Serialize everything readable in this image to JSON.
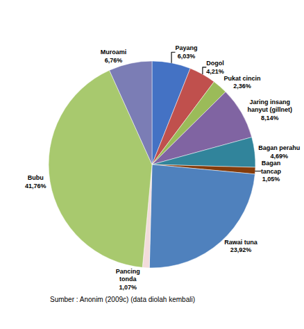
{
  "chart_data": {
    "type": "pie",
    "title": "",
    "categories": [
      "Payang",
      "Dogol",
      "Pukat cincin",
      "Jaring insang\nhanyut (gillnet)",
      "Bagan perahu",
      "Bagan\ntancap",
      "Rawai tuna",
      "Pancing\ntonda",
      "Bubu",
      "Muroami"
    ],
    "values": [
      6.03,
      4.21,
      2.36,
      8.14,
      4.69,
      1.05,
      23.92,
      1.07,
      41.76,
      6.76
    ],
    "value_labels": [
      "6,03%",
      "4,21%",
      "2,36%",
      "8,14%",
      "4,69%",
      "1,05%",
      "23,92%",
      "1,07%",
      "41,76%",
      "6,76%"
    ],
    "colors": [
      "#4472C4",
      "#C0504D",
      "#9BBB59",
      "#8064A2",
      "#31849B",
      "#843C0C",
      "#4F81BD",
      "#F2DCDB",
      "#A8C96E",
      "#7B7DB5"
    ],
    "data_labels": true,
    "annotations": [
      "Sumber : Anonim (2009c) (data diolah kembali)"
    ]
  }
}
